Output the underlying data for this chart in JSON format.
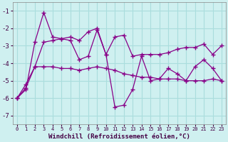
{
  "xlabel": "Windchill (Refroidissement éolien,°C)",
  "bg_color": "#cff0f0",
  "grid_color": "#aadddd",
  "line_color": "#880088",
  "x": [
    0,
    1,
    2,
    3,
    4,
    5,
    6,
    7,
    8,
    9,
    10,
    11,
    12,
    13,
    14,
    15,
    16,
    17,
    18,
    19,
    20,
    21,
    22,
    23
  ],
  "line1": [
    -6.0,
    -5.5,
    -2.8,
    -1.1,
    -2.5,
    -2.6,
    -2.7,
    -3.8,
    -3.6,
    -2.1,
    -3.5,
    -6.5,
    -6.4,
    -5.5,
    -3.6,
    -5.0,
    -4.9,
    -4.3,
    -4.6,
    -5.0,
    -4.2,
    -3.8,
    -4.3,
    -5.0
  ],
  "line2": [
    -6.0,
    -5.2,
    -4.2,
    -2.8,
    -2.7,
    -2.6,
    -2.5,
    -2.7,
    -2.2,
    -2.0,
    -3.5,
    -2.5,
    -2.4,
    -3.6,
    -3.5,
    -3.5,
    -3.5,
    -3.4,
    -3.2,
    -3.1,
    -3.1,
    -2.9,
    -3.5,
    -3.0
  ],
  "line3": [
    -6.0,
    -5.4,
    -4.2,
    -4.2,
    -4.2,
    -4.3,
    -4.3,
    -4.4,
    -4.3,
    -4.2,
    -4.3,
    -4.4,
    -4.6,
    -4.7,
    -4.8,
    -4.8,
    -4.9,
    -4.9,
    -4.9,
    -5.0,
    -5.0,
    -5.0,
    -4.9,
    -5.0
  ],
  "xlim": [
    -0.5,
    23.5
  ],
  "ylim": [
    -7.5,
    -0.5
  ],
  "yticks": [
    -7,
    -6,
    -5,
    -4,
    -3,
    -2,
    -1
  ],
  "xtick_labels": [
    "0",
    "1",
    "2",
    "3",
    "4",
    "5",
    "6",
    "7",
    "8",
    "9",
    "10",
    "11",
    "12",
    "13",
    "14",
    "15",
    "16",
    "17",
    "18",
    "19",
    "20",
    "21",
    "22",
    "23"
  ]
}
